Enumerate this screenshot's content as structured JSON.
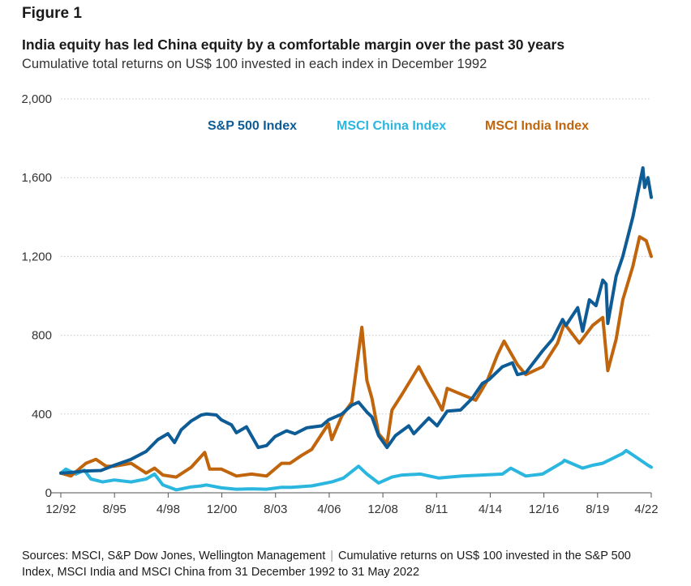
{
  "figure_label": "Figure 1",
  "source_note": {
    "part1": "Sources: MSCI, S&P Dow Jones, Wellington Management",
    "part2": "Cumulative returns on US$ 100 invested in the S&P 500 Index, MSCI India and MSCI China from 31 December 1992 to 31 May 2022"
  },
  "chart_data": {
    "type": "line",
    "title": "India equity has led China equity by a comfortable margin over the past 30 years",
    "subtitle": "Cumulative total returns on US$ 100 invested in each index in December 1992",
    "xlabel": "",
    "ylabel": "",
    "x_range": [
      "1992-12",
      "2022-05"
    ],
    "x_ticks": [
      "12/92",
      "8/95",
      "4/98",
      "12/00",
      "8/03",
      "4/06",
      "12/08",
      "8/11",
      "4/14",
      "12/16",
      "8/19",
      "4/22"
    ],
    "ylim": [
      0,
      2000
    ],
    "y_ticks": [
      0,
      400,
      800,
      1200,
      1600,
      2000
    ],
    "y_tick_labels": [
      "0",
      "400",
      "800",
      "1,200",
      "1,600",
      "2,000"
    ],
    "grid": "horizontal",
    "legend_position": "top",
    "series": [
      {
        "name": "S&P 500 Index",
        "color": "#0d5c96",
        "points": [
          [
            "1992-12",
            100
          ],
          [
            "1993-06",
            103
          ],
          [
            "1994-01",
            110
          ],
          [
            "1994-12",
            113
          ],
          [
            "1995-08",
            140
          ],
          [
            "1996-06",
            170
          ],
          [
            "1997-03",
            210
          ],
          [
            "1997-10",
            270
          ],
          [
            "1998-04",
            300
          ],
          [
            "1998-08",
            255
          ],
          [
            "1998-12",
            320
          ],
          [
            "1999-06",
            365
          ],
          [
            "1999-12",
            395
          ],
          [
            "2000-03",
            400
          ],
          [
            "2000-09",
            395
          ],
          [
            "2000-12",
            370
          ],
          [
            "2001-06",
            345
          ],
          [
            "2001-09",
            305
          ],
          [
            "2002-03",
            335
          ],
          [
            "2002-07",
            275
          ],
          [
            "2002-10",
            230
          ],
          [
            "2003-03",
            240
          ],
          [
            "2003-08",
            285
          ],
          [
            "2004-03",
            315
          ],
          [
            "2004-08",
            300
          ],
          [
            "2005-03",
            330
          ],
          [
            "2005-12",
            340
          ],
          [
            "2006-04",
            370
          ],
          [
            "2006-12",
            400
          ],
          [
            "2007-06",
            445
          ],
          [
            "2007-10",
            460
          ],
          [
            "2008-03",
            410
          ],
          [
            "2008-06",
            385
          ],
          [
            "2008-10",
            290
          ],
          [
            "2009-03",
            230
          ],
          [
            "2009-08",
            290
          ],
          [
            "2010-04",
            340
          ],
          [
            "2010-07",
            300
          ],
          [
            "2011-04",
            380
          ],
          [
            "2011-09",
            340
          ],
          [
            "2012-03",
            415
          ],
          [
            "2012-11",
            420
          ],
          [
            "2013-06",
            480
          ],
          [
            "2013-12",
            555
          ],
          [
            "2014-04",
            575
          ],
          [
            "2014-12",
            640
          ],
          [
            "2015-06",
            660
          ],
          [
            "2015-09",
            600
          ],
          [
            "2016-02",
            610
          ],
          [
            "2016-12",
            720
          ],
          [
            "2017-06",
            780
          ],
          [
            "2017-12",
            880
          ],
          [
            "2018-02",
            850
          ],
          [
            "2018-09",
            940
          ],
          [
            "2018-12",
            820
          ],
          [
            "2019-04",
            980
          ],
          [
            "2019-08",
            950
          ],
          [
            "2019-12",
            1080
          ],
          [
            "2020-02",
            1060
          ],
          [
            "2020-03",
            860
          ],
          [
            "2020-08",
            1100
          ],
          [
            "2020-12",
            1200
          ],
          [
            "2021-06",
            1400
          ],
          [
            "2021-12",
            1650
          ],
          [
            "2022-01",
            1550
          ],
          [
            "2022-03",
            1600
          ],
          [
            "2022-05",
            1500
          ]
        ]
      },
      {
        "name": "MSCI China Index",
        "color": "#2bb6e0",
        "points": [
          [
            "1992-12",
            100
          ],
          [
            "1993-03",
            120
          ],
          [
            "1993-09",
            95
          ],
          [
            "1994-02",
            115
          ],
          [
            "1994-06",
            70
          ],
          [
            "1995-01",
            55
          ],
          [
            "1995-08",
            65
          ],
          [
            "1996-06",
            55
          ],
          [
            "1997-03",
            70
          ],
          [
            "1997-08",
            95
          ],
          [
            "1998-01",
            40
          ],
          [
            "1998-09",
            15
          ],
          [
            "1999-06",
            30
          ],
          [
            "1999-12",
            35
          ],
          [
            "2000-03",
            40
          ],
          [
            "2000-12",
            25
          ],
          [
            "2001-09",
            18
          ],
          [
            "2002-06",
            20
          ],
          [
            "2003-03",
            18
          ],
          [
            "2003-12",
            28
          ],
          [
            "2004-06",
            28
          ],
          [
            "2005-06",
            35
          ],
          [
            "2006-06",
            55
          ],
          [
            "2007-01",
            75
          ],
          [
            "2007-10",
            135
          ],
          [
            "2008-03",
            95
          ],
          [
            "2008-10",
            50
          ],
          [
            "2009-06",
            80
          ],
          [
            "2009-12",
            90
          ],
          [
            "2010-11",
            95
          ],
          [
            "2011-10",
            75
          ],
          [
            "2012-12",
            85
          ],
          [
            "2013-12",
            90
          ],
          [
            "2014-12",
            95
          ],
          [
            "2015-05",
            125
          ],
          [
            "2016-02",
            85
          ],
          [
            "2016-12",
            95
          ],
          [
            "2017-12",
            155
          ],
          [
            "2018-01",
            165
          ],
          [
            "2018-12",
            125
          ],
          [
            "2019-06",
            140
          ],
          [
            "2019-12",
            150
          ],
          [
            "2020-12",
            200
          ],
          [
            "2021-02",
            215
          ],
          [
            "2021-09",
            175
          ],
          [
            "2022-03",
            140
          ],
          [
            "2022-05",
            130
          ]
        ]
      },
      {
        "name": "MSCI India Index",
        "color": "#c1650c",
        "points": [
          [
            "1992-12",
            100
          ],
          [
            "1993-06",
            85
          ],
          [
            "1994-03",
            150
          ],
          [
            "1994-09",
            170
          ],
          [
            "1995-03",
            135
          ],
          [
            "1995-08",
            135
          ],
          [
            "1996-06",
            150
          ],
          [
            "1997-03",
            100
          ],
          [
            "1997-08",
            125
          ],
          [
            "1998-01",
            90
          ],
          [
            "1998-09",
            80
          ],
          [
            "1999-06",
            130
          ],
          [
            "2000-02",
            205
          ],
          [
            "2000-05",
            120
          ],
          [
            "2000-12",
            120
          ],
          [
            "2001-09",
            85
          ],
          [
            "2002-06",
            95
          ],
          [
            "2003-03",
            85
          ],
          [
            "2003-12",
            150
          ],
          [
            "2004-05",
            150
          ],
          [
            "2004-12",
            190
          ],
          [
            "2005-06",
            220
          ],
          [
            "2006-04",
            350
          ],
          [
            "2006-06",
            270
          ],
          [
            "2006-12",
            390
          ],
          [
            "2007-06",
            460
          ],
          [
            "2007-12",
            840
          ],
          [
            "2008-03",
            570
          ],
          [
            "2008-06",
            480
          ],
          [
            "2008-10",
            300
          ],
          [
            "2009-03",
            250
          ],
          [
            "2009-06",
            420
          ],
          [
            "2009-12",
            500
          ],
          [
            "2010-10",
            640
          ],
          [
            "2011-03",
            560
          ],
          [
            "2011-09",
            470
          ],
          [
            "2011-12",
            420
          ],
          [
            "2012-03",
            530
          ],
          [
            "2013-08",
            470
          ],
          [
            "2014-03",
            570
          ],
          [
            "2014-09",
            700
          ],
          [
            "2015-01",
            770
          ],
          [
            "2015-09",
            650
          ],
          [
            "2016-02",
            600
          ],
          [
            "2016-12",
            640
          ],
          [
            "2017-09",
            760
          ],
          [
            "2018-01",
            860
          ],
          [
            "2018-10",
            760
          ],
          [
            "2019-06",
            850
          ],
          [
            "2019-12",
            890
          ],
          [
            "2020-03",
            620
          ],
          [
            "2020-08",
            780
          ],
          [
            "2020-12",
            980
          ],
          [
            "2021-06",
            1150
          ],
          [
            "2021-10",
            1300
          ],
          [
            "2022-02",
            1280
          ],
          [
            "2022-05",
            1200
          ]
        ]
      }
    ]
  }
}
